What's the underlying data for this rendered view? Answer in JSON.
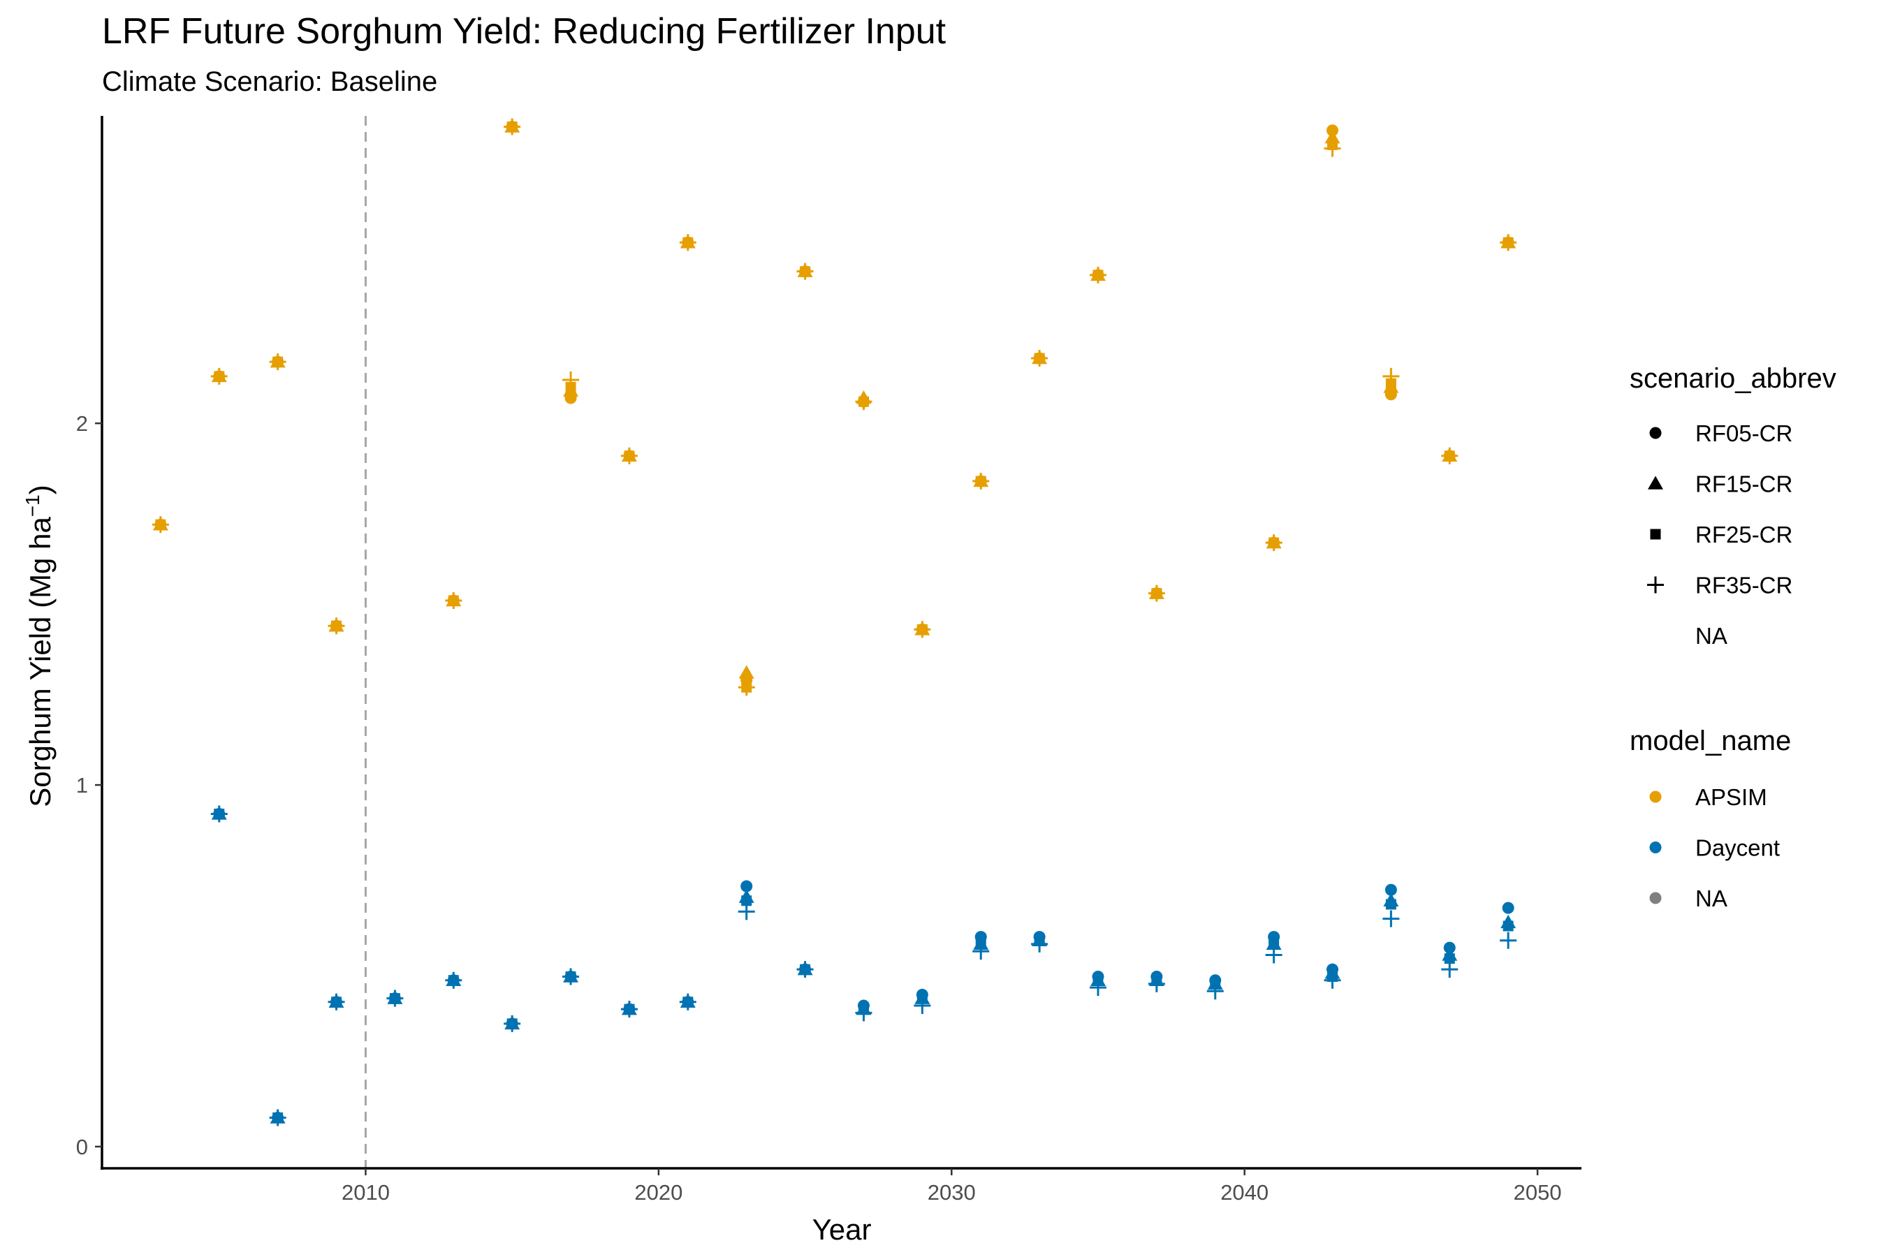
{
  "chart_data": {
    "type": "scatter",
    "title": "LRF Future Sorghum Yield: Reducing Fertilizer Input",
    "subtitle": "Climate Scenario: Baseline",
    "xlabel": "Year",
    "ylabel": "Sorghum Yield (Mg ha",
    "ylabel_superscript": "−1",
    "ylabel_suffix": ")",
    "xlim": [
      2001,
      2051.5
    ],
    "ylim": [
      -0.06,
      2.85
    ],
    "x_ticks": [
      2010,
      2020,
      2030,
      2040,
      2050
    ],
    "y_ticks": [
      0,
      1,
      2
    ],
    "reference_line": {
      "x": 2010,
      "style": "dashed",
      "color": "#a6a6a6"
    },
    "grid": false,
    "legend_position": "right",
    "legends": [
      {
        "title": "scenario_abbrev",
        "entries": [
          {
            "label": "RF05-CR",
            "shape": "circle"
          },
          {
            "label": "RF15-CR",
            "shape": "triangle"
          },
          {
            "label": "RF25-CR",
            "shape": "square"
          },
          {
            "label": "RF35-CR",
            "shape": "plus"
          },
          {
            "label": "NA",
            "shape": "none"
          }
        ]
      },
      {
        "title": "model_name",
        "entries": [
          {
            "label": "APSIM",
            "color": "#E69F00"
          },
          {
            "label": "Daycent",
            "color": "#0072B2"
          },
          {
            "label": "NA",
            "color": "#808080"
          }
        ]
      }
    ],
    "series": [
      {
        "model": "APSIM",
        "color": "#E69F00",
        "x": [
          2003,
          2005,
          2007,
          2009,
          2013,
          2015,
          2017,
          2019,
          2021,
          2023,
          2025,
          2027,
          2029,
          2031,
          2033,
          2035,
          2037,
          2041,
          2043,
          2045,
          2047,
          2049
        ],
        "RF05-CR": [
          1.72,
          2.13,
          2.17,
          1.44,
          1.51,
          2.82,
          2.07,
          1.91,
          2.5,
          1.29,
          2.42,
          2.06,
          1.43,
          1.84,
          2.18,
          2.41,
          1.53,
          1.67,
          2.81,
          2.08,
          1.91,
          2.5
        ],
        "RF15-CR": [
          1.72,
          2.13,
          2.17,
          1.44,
          1.51,
          2.82,
          2.09,
          1.91,
          2.5,
          1.31,
          2.42,
          2.07,
          1.43,
          1.84,
          2.18,
          2.41,
          1.53,
          1.67,
          2.79,
          2.1,
          1.91,
          2.5
        ],
        "RF25-CR": [
          1.72,
          2.13,
          2.17,
          1.44,
          1.51,
          2.82,
          2.1,
          1.91,
          2.5,
          1.27,
          2.42,
          2.06,
          1.43,
          1.84,
          2.18,
          2.41,
          1.53,
          1.67,
          2.77,
          2.11,
          1.91,
          2.5
        ],
        "RF35-CR": [
          1.72,
          2.13,
          2.17,
          1.44,
          1.51,
          2.82,
          2.12,
          1.91,
          2.5,
          1.27,
          2.42,
          2.06,
          1.43,
          1.84,
          2.18,
          2.41,
          1.53,
          1.67,
          2.76,
          2.13,
          1.91,
          2.5
        ]
      },
      {
        "model": "Daycent",
        "color": "#0072B2",
        "x": [
          2005,
          2007,
          2009,
          2011,
          2013,
          2015,
          2017,
          2019,
          2021,
          2023,
          2025,
          2027,
          2029,
          2031,
          2033,
          2035,
          2037,
          2039,
          2041,
          2043,
          2045,
          2047,
          2049
        ],
        "RF05-CR": [
          0.92,
          0.08,
          0.4,
          0.41,
          0.46,
          0.34,
          0.47,
          0.38,
          0.4,
          0.72,
          0.49,
          0.39,
          0.42,
          0.58,
          0.58,
          0.47,
          0.47,
          0.46,
          0.58,
          0.49,
          0.71,
          0.55,
          0.66
        ],
        "RF15-CR": [
          0.92,
          0.08,
          0.4,
          0.41,
          0.46,
          0.34,
          0.47,
          0.38,
          0.4,
          0.69,
          0.49,
          0.38,
          0.41,
          0.56,
          0.57,
          0.46,
          0.46,
          0.45,
          0.56,
          0.48,
          0.68,
          0.53,
          0.62
        ],
        "RF25-CR": [
          0.92,
          0.08,
          0.4,
          0.41,
          0.46,
          0.34,
          0.47,
          0.38,
          0.4,
          0.68,
          0.49,
          0.38,
          0.41,
          0.56,
          0.57,
          0.46,
          0.46,
          0.45,
          0.56,
          0.47,
          0.67,
          0.52,
          0.61
        ],
        "RF35-CR": [
          0.92,
          0.08,
          0.4,
          0.41,
          0.46,
          0.34,
          0.47,
          0.38,
          0.4,
          0.65,
          0.49,
          0.37,
          0.39,
          0.54,
          0.56,
          0.44,
          0.45,
          0.43,
          0.53,
          0.46,
          0.63,
          0.49,
          0.57
        ]
      }
    ]
  }
}
